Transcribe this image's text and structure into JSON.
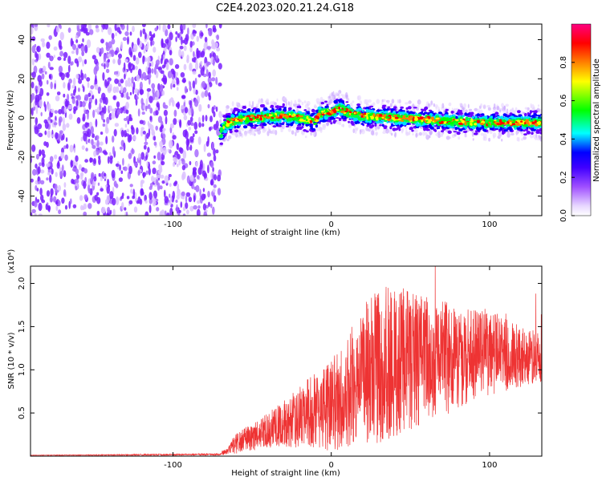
{
  "chart_data": [
    {
      "type": "heatmap",
      "title": "C2E4.2023.020.21.24.G18",
      "xlabel": "Height of straight line (km)",
      "ylabel": "Frequency (Hz)",
      "xlim": [
        -190,
        133
      ],
      "ylim": [
        -50,
        48
      ],
      "x_ticks": [
        -100,
        0,
        100
      ],
      "y_ticks": [
        -40,
        -20,
        0,
        20,
        40
      ],
      "colorbar": {
        "label": "Normalized spectral amplitude",
        "range": [
          0,
          1
        ],
        "ticks": [
          "0.0",
          "0.2",
          "0.4",
          "0.6",
          "0.8"
        ],
        "colors": [
          "#f0e0ff",
          "#c080ff",
          "#8000ff",
          "#0000ff",
          "#00ffff",
          "#00ff00",
          "#ffff00",
          "#ff8000",
          "#ff0000",
          "#ff0080"
        ]
      },
      "regions": [
        {
          "kind": "noise",
          "x_range": [
            -190,
            -70
          ],
          "freq_range": [
            -50,
            48
          ],
          "amplitude_range": [
            0.0,
            0.08
          ]
        },
        {
          "kind": "signal",
          "x_range": [
            -70,
            133
          ],
          "band_halfwidth_hz": 3,
          "amplitude_range": [
            0.3,
            0.95
          ]
        }
      ],
      "signal_frequency": {
        "x": [
          -70,
          -66,
          -60,
          -50,
          -40,
          -30,
          -20,
          -10,
          -8,
          0,
          5,
          10,
          20,
          40,
          60,
          80,
          100,
          120,
          133
        ],
        "y": [
          -8,
          -3,
          -1,
          0,
          0.5,
          1,
          0,
          -2,
          2,
          3,
          5,
          3,
          1,
          0,
          -1,
          -2,
          -2.5,
          -2.5,
          -2.5
        ]
      }
    },
    {
      "type": "line",
      "xlabel": "Height of straight line (km)",
      "ylabel": "SNR (10 * v/v)",
      "y_multiplier": "(x10⁴)",
      "xlim": [
        -190,
        133
      ],
      "ylim": [
        0,
        2.2
      ],
      "x_ticks": [
        -100,
        0,
        100
      ],
      "y_ticks": [
        "0.5",
        "1.0",
        "1.5",
        "2.0"
      ],
      "color": "#ee3333",
      "envelope": {
        "x": [
          -190,
          -70,
          -60,
          -40,
          -20,
          -10,
          0,
          10,
          20,
          30,
          40,
          60,
          80,
          100,
          120,
          133
        ],
        "mean": [
          0.01,
          0.02,
          0.15,
          0.3,
          0.45,
          0.55,
          0.6,
          0.75,
          0.95,
          1.05,
          1.1,
          1.1,
          1.15,
          1.2,
          1.15,
          1.15
        ],
        "spread": [
          0.002,
          0.01,
          0.12,
          0.2,
          0.35,
          0.45,
          0.55,
          0.65,
          0.8,
          0.9,
          0.9,
          0.75,
          0.6,
          0.5,
          0.35,
          0.3
        ]
      }
    }
  ]
}
